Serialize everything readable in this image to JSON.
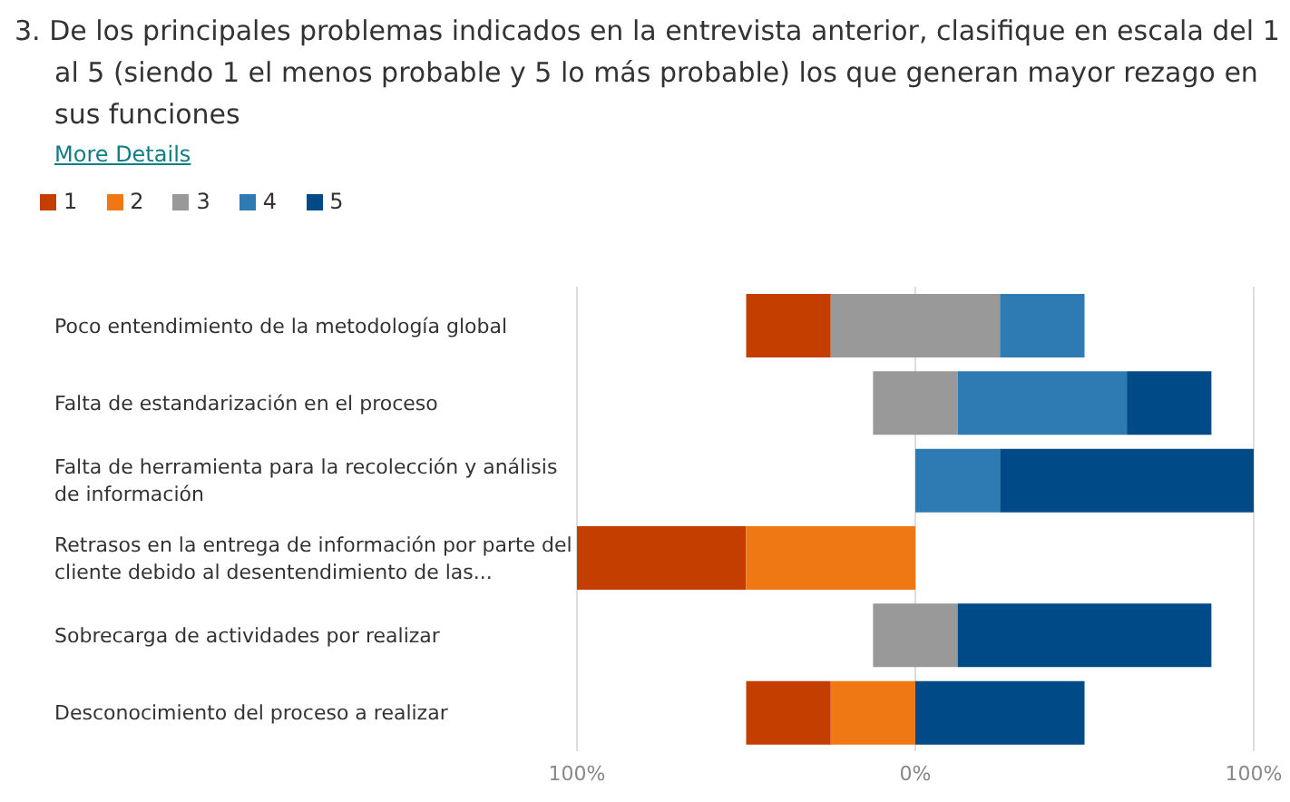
{
  "chart_data": {
    "type": "bar",
    "orientation": "horizontal",
    "title": "3.  De los principales problemas indicados en la entrevista anterior, clasifique en escala del 1 al 5 (siendo 1 el menos probable y 5 lo más probable) los que generan mayor rezago en sus funciones",
    "annotations": [
      "More Details"
    ],
    "categories": [
      "Poco entendimiento de la metodología global",
      "Falta de estandarización en el proceso",
      "Falta de herramienta para la recolección y análisis de información",
      "Retrasos en la entrega de información por parte del cliente debido al desentendimiento de las...",
      "Sobrecarga de actividades por realizar",
      "Desconocimiento del proceso a realizar"
    ],
    "series": [
      {
        "name": "1",
        "color": "#c43e00",
        "values": [
          25,
          null,
          null,
          50,
          null,
          25
        ],
        "base": [
          -50,
          null,
          null,
          -100,
          null,
          -50
        ]
      },
      {
        "name": "2",
        "color": "#f07814",
        "values": [
          null,
          null,
          null,
          50,
          null,
          25
        ],
        "base": [
          null,
          null,
          null,
          -50,
          null,
          -25
        ]
      },
      {
        "name": "3",
        "color": "#999999",
        "values": [
          50,
          25,
          null,
          null,
          25,
          null
        ],
        "base": [
          -25,
          -12.5,
          null,
          null,
          -12.5,
          null
        ]
      },
      {
        "name": "4",
        "color": "#2e7bb4",
        "values": [
          25,
          50,
          25,
          null,
          null,
          null
        ],
        "base": [
          25,
          12.5,
          0,
          null,
          null,
          null
        ]
      },
      {
        "name": "5",
        "color": "#004b87",
        "values": [
          null,
          25,
          75,
          null,
          75,
          50
        ],
        "base": [
          null,
          62.5,
          25,
          null,
          12.5,
          0
        ]
      }
    ],
    "xlim": [
      -100,
      100
    ],
    "xticks": [
      {
        "value": -100,
        "label": "100%"
      },
      {
        "value": 0,
        "label": "0%"
      },
      {
        "value": 100,
        "label": "100%"
      }
    ],
    "grid": "x",
    "legend": "top left"
  }
}
